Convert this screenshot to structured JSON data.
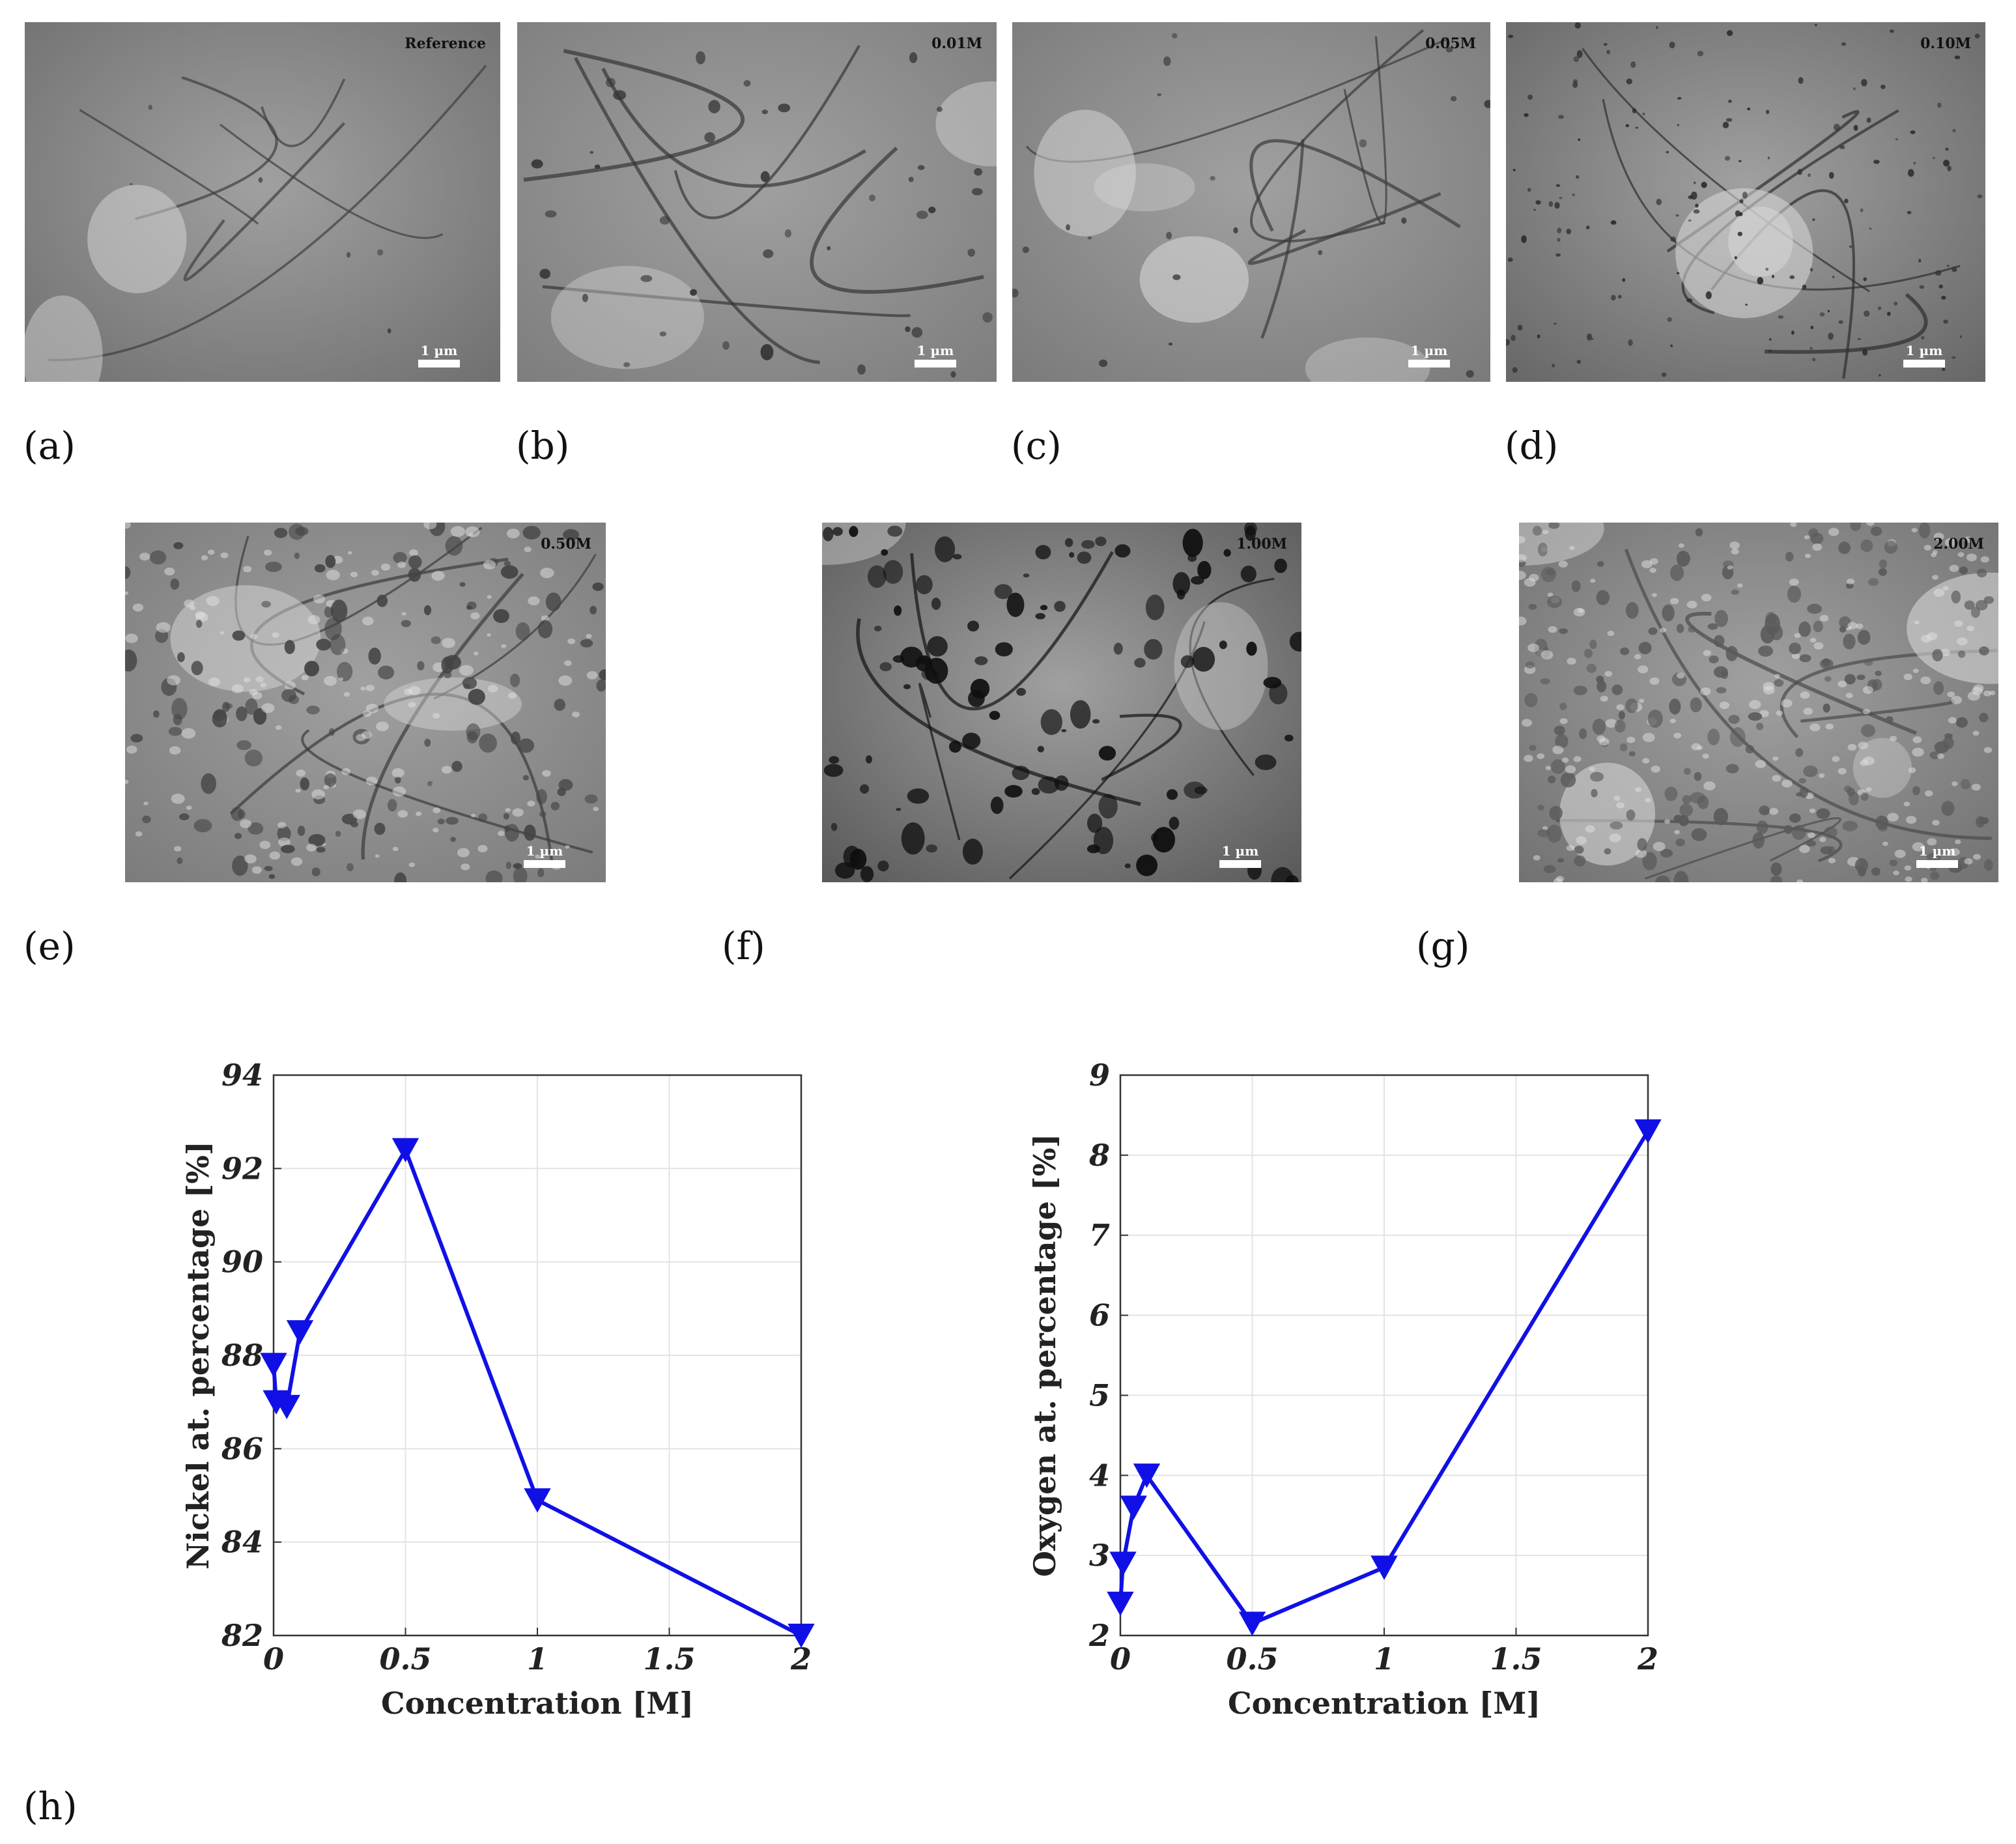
{
  "micrographs": [
    {
      "id": "a",
      "label": "(a)",
      "tag": "Reference",
      "scale_text": "1 µm",
      "tone": "#6f6f6f",
      "dark": "#3e3e3e",
      "style": "grains"
    },
    {
      "id": "b",
      "label": "(b)",
      "tag": "0.01M",
      "scale_text": "1 µm",
      "tone": "#7d7d7d",
      "dark": "#363636",
      "style": "pits"
    },
    {
      "id": "c",
      "label": "(c)",
      "tag": "0.05M",
      "scale_text": "1 µm",
      "tone": "#7a7a7a",
      "dark": "#3a3a3a",
      "style": "bright"
    },
    {
      "id": "d",
      "label": "(d)",
      "tag": "0.10M",
      "scale_text": "1 µm",
      "tone": "#666666",
      "dark": "#2e2e2e",
      "style": "textured"
    },
    {
      "id": "e",
      "label": "(e)",
      "tag": "0.50M",
      "scale_text": "1 µm",
      "tone": "#7b7b7b",
      "dark": "#3a3a3a",
      "style": "clusters"
    },
    {
      "id": "f",
      "label": "(f)",
      "tag": "1.00M",
      "scale_text": "1 µm",
      "tone": "#585858",
      "dark": "#121212",
      "style": "darkpits"
    },
    {
      "id": "g",
      "label": "(g)",
      "tag": "2.00M",
      "scale_text": "1 µm",
      "tone": "#717171",
      "dark": "#4a4a4a",
      "style": "nodular"
    }
  ],
  "bottom_label": "(h)",
  "chart_data": [
    {
      "type": "line",
      "x": [
        0,
        0.01,
        0.05,
        0.1,
        0.5,
        1,
        2
      ],
      "series": [
        {
          "values": [
            87.8,
            87.0,
            86.9,
            88.5,
            92.4,
            84.9,
            82.0
          ],
          "color": "#1010e6",
          "marker": "triangle-down"
        }
      ],
      "xlabel": "Concentration [M]",
      "ylabel": "Nickel at. percentage [%]",
      "xlim": [
        0,
        2
      ],
      "ylim": [
        82,
        94
      ],
      "xticks": [
        0,
        0.5,
        1,
        1.5,
        2
      ],
      "xtick_labels": [
        "0",
        "0.5",
        "1",
        "1.5",
        "2"
      ],
      "yticks": [
        82,
        84,
        86,
        88,
        90,
        92,
        94
      ],
      "ytick_labels": [
        "82",
        "84",
        "86",
        "88",
        "90",
        "92",
        "94"
      ],
      "grid": true
    },
    {
      "type": "line",
      "x": [
        0,
        0.01,
        0.05,
        0.1,
        0.5,
        1,
        2
      ],
      "series": [
        {
          "values": [
            2.4,
            2.9,
            3.6,
            4.0,
            2.15,
            2.85,
            8.3
          ],
          "color": "#1010e6",
          "marker": "triangle-down"
        }
      ],
      "xlabel": "Concentration [M]",
      "ylabel": "Oxygen at. percentage [%]",
      "xlim": [
        0,
        2
      ],
      "ylim": [
        2,
        9
      ],
      "xticks": [
        0,
        0.5,
        1,
        1.5,
        2
      ],
      "xtick_labels": [
        "0",
        "0.5",
        "1",
        "1.5",
        "2"
      ],
      "yticks": [
        2,
        3,
        4,
        5,
        6,
        7,
        8,
        9
      ],
      "ytick_labels": [
        "2",
        "3",
        "4",
        "5",
        "6",
        "7",
        "8",
        "9"
      ],
      "grid": true
    }
  ]
}
